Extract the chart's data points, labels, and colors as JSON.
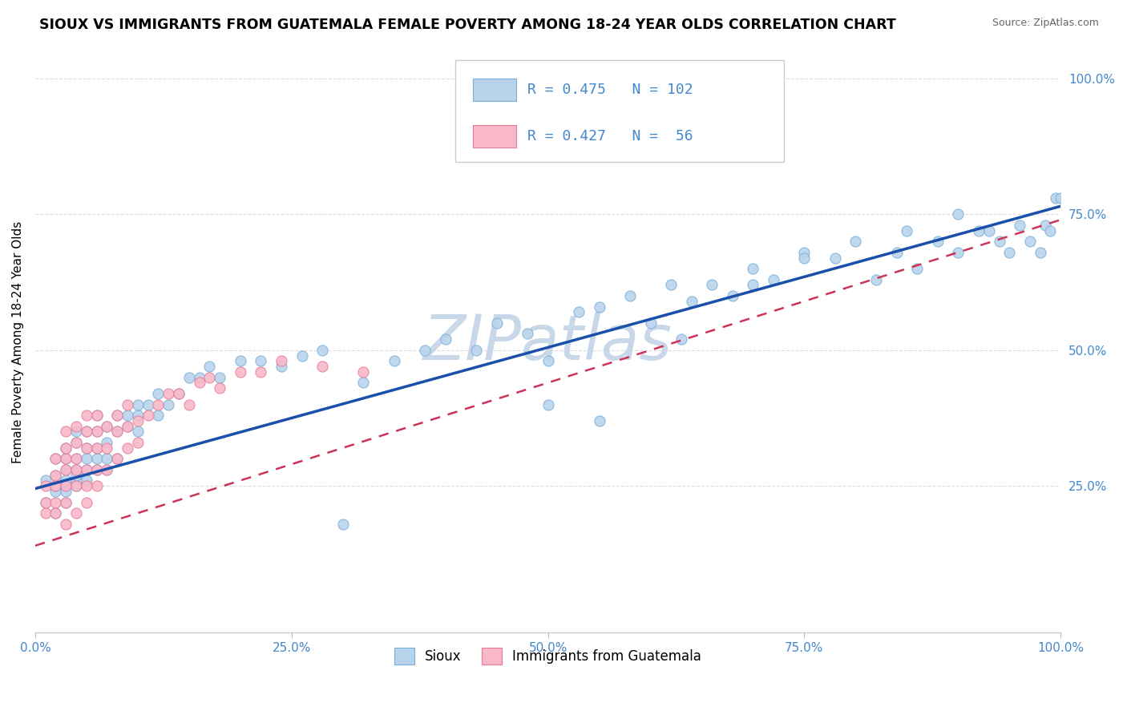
{
  "title": "SIOUX VS IMMIGRANTS FROM GUATEMALA FEMALE POVERTY AMONG 18-24 YEAR OLDS CORRELATION CHART",
  "source": "Source: ZipAtlas.com",
  "ylabel": "Female Poverty Among 18-24 Year Olds",
  "xlim": [
    0,
    1.0
  ],
  "ylim": [
    -0.02,
    1.05
  ],
  "xticks": [
    0.0,
    0.25,
    0.5,
    0.75,
    1.0
  ],
  "xticklabels": [
    "0.0%",
    "25.0%",
    "50.0%",
    "75.0%",
    "100.0%"
  ],
  "yticks": [
    0.25,
    0.5,
    0.75,
    1.0
  ],
  "yticklabels": [
    "25.0%",
    "50.0%",
    "75.0%",
    "100.0%"
  ],
  "series1_color": "#b8d4ed",
  "series1_edge": "#7aadd4",
  "series2_color": "#f9b8c8",
  "series2_edge": "#e87898",
  "trendline1_color": "#1a4faa",
  "trendline2_color": "#cc3355",
  "trendline1_b0": 0.245,
  "trendline1_b1": 0.52,
  "trendline2_b0": 0.14,
  "trendline2_b1": 0.6,
  "R1": 0.475,
  "N1": 102,
  "R2": 0.427,
  "N2": 56,
  "legend_label1": "Sioux",
  "legend_label2": "Immigrants from Guatemala",
  "watermark": "ZIPatlas",
  "watermark_color": "#c8d8e8",
  "title_fontsize": 12.5,
  "axis_color": "#4488cc",
  "grid_color": "#dddddd",
  "sioux_x": [
    0.01,
    0.01,
    0.02,
    0.02,
    0.02,
    0.02,
    0.02,
    0.03,
    0.03,
    0.03,
    0.03,
    0.03,
    0.03,
    0.03,
    0.04,
    0.04,
    0.04,
    0.04,
    0.04,
    0.04,
    0.04,
    0.05,
    0.05,
    0.05,
    0.05,
    0.05,
    0.06,
    0.06,
    0.06,
    0.06,
    0.06,
    0.07,
    0.07,
    0.07,
    0.07,
    0.08,
    0.08,
    0.08,
    0.09,
    0.09,
    0.1,
    0.1,
    0.1,
    0.11,
    0.12,
    0.12,
    0.13,
    0.14,
    0.15,
    0.16,
    0.17,
    0.18,
    0.2,
    0.22,
    0.24,
    0.26,
    0.28,
    0.3,
    0.32,
    0.35,
    0.38,
    0.4,
    0.43,
    0.45,
    0.48,
    0.5,
    0.53,
    0.55,
    0.58,
    0.6,
    0.62,
    0.64,
    0.66,
    0.68,
    0.7,
    0.72,
    0.75,
    0.78,
    0.8,
    0.82,
    0.84,
    0.86,
    0.88,
    0.9,
    0.92,
    0.93,
    0.94,
    0.95,
    0.96,
    0.97,
    0.98,
    0.985,
    0.99,
    0.995,
    1.0,
    0.63,
    0.5,
    0.7,
    0.75,
    0.85,
    0.9,
    0.55
  ],
  "sioux_y": [
    0.22,
    0.26,
    0.2,
    0.24,
    0.27,
    0.3,
    0.25,
    0.22,
    0.28,
    0.25,
    0.3,
    0.24,
    0.26,
    0.32,
    0.28,
    0.26,
    0.3,
    0.33,
    0.25,
    0.27,
    0.35,
    0.3,
    0.28,
    0.32,
    0.26,
    0.35,
    0.3,
    0.28,
    0.35,
    0.32,
    0.38,
    0.33,
    0.3,
    0.36,
    0.28,
    0.35,
    0.38,
    0.3,
    0.38,
    0.36,
    0.38,
    0.35,
    0.4,
    0.4,
    0.42,
    0.38,
    0.4,
    0.42,
    0.45,
    0.45,
    0.47,
    0.45,
    0.48,
    0.48,
    0.47,
    0.49,
    0.5,
    0.18,
    0.44,
    0.48,
    0.5,
    0.52,
    0.5,
    0.55,
    0.53,
    0.48,
    0.57,
    0.58,
    0.6,
    0.55,
    0.62,
    0.59,
    0.62,
    0.6,
    0.65,
    0.63,
    0.68,
    0.67,
    0.7,
    0.63,
    0.68,
    0.65,
    0.7,
    0.68,
    0.72,
    0.72,
    0.7,
    0.68,
    0.73,
    0.7,
    0.68,
    0.73,
    0.72,
    0.78,
    0.78,
    0.52,
    0.4,
    0.62,
    0.67,
    0.72,
    0.75,
    0.37
  ],
  "guatemala_x": [
    0.01,
    0.01,
    0.01,
    0.02,
    0.02,
    0.02,
    0.02,
    0.02,
    0.03,
    0.03,
    0.03,
    0.03,
    0.03,
    0.03,
    0.03,
    0.04,
    0.04,
    0.04,
    0.04,
    0.04,
    0.04,
    0.05,
    0.05,
    0.05,
    0.05,
    0.05,
    0.05,
    0.06,
    0.06,
    0.06,
    0.06,
    0.06,
    0.07,
    0.07,
    0.07,
    0.08,
    0.08,
    0.08,
    0.09,
    0.09,
    0.09,
    0.1,
    0.1,
    0.11,
    0.12,
    0.13,
    0.14,
    0.15,
    0.16,
    0.17,
    0.18,
    0.2,
    0.22,
    0.24,
    0.28,
    0.32
  ],
  "guatemala_y": [
    0.2,
    0.22,
    0.25,
    0.2,
    0.22,
    0.25,
    0.27,
    0.3,
    0.18,
    0.22,
    0.25,
    0.28,
    0.3,
    0.32,
    0.35,
    0.2,
    0.25,
    0.28,
    0.3,
    0.33,
    0.36,
    0.22,
    0.25,
    0.28,
    0.32,
    0.35,
    0.38,
    0.25,
    0.28,
    0.32,
    0.35,
    0.38,
    0.28,
    0.32,
    0.36,
    0.3,
    0.35,
    0.38,
    0.32,
    0.36,
    0.4,
    0.33,
    0.37,
    0.38,
    0.4,
    0.42,
    0.42,
    0.4,
    0.44,
    0.45,
    0.43,
    0.46,
    0.46,
    0.48,
    0.47,
    0.46
  ]
}
